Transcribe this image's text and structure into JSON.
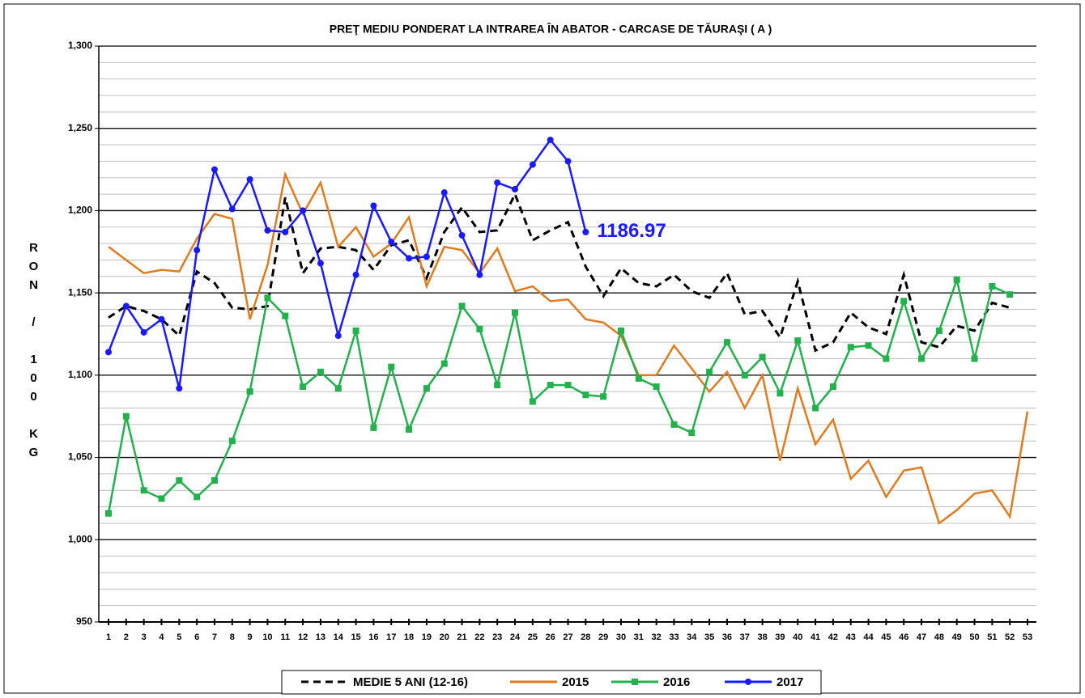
{
  "chart_data": {
    "type": "line",
    "title": "PREŢ MEDIU PONDERAT LA INTRAREA ÎN ABATOR - CARCASE DE TĂURAŞI ( A )",
    "ylabel": "RON / 100 KG",
    "annotation": "1186.97",
    "categories": [
      "1",
      "2",
      "3",
      "4",
      "5",
      "6",
      "7",
      "8",
      "9",
      "10",
      "11",
      "12",
      "13",
      "14",
      "15",
      "16",
      "17",
      "18",
      "19",
      "20",
      "21",
      "22",
      "23",
      "24",
      "25",
      "26",
      "27",
      "28",
      "29",
      "30",
      "31",
      "32",
      "33",
      "34",
      "35",
      "36",
      "37",
      "38",
      "39",
      "40",
      "41",
      "42",
      "43",
      "44",
      "45",
      "46",
      "47",
      "48",
      "49",
      "50",
      "51",
      "52",
      "53"
    ],
    "ylim": [
      950,
      1300
    ],
    "yticks": [
      {
        "value": 950,
        "label": "950"
      },
      {
        "value": 1000,
        "label": "1,000"
      },
      {
        "value": 1050,
        "label": "1,050"
      },
      {
        "value": 1100,
        "label": "1,100"
      },
      {
        "value": 1150,
        "label": "1,150"
      },
      {
        "value": 1200,
        "label": "1,200"
      },
      {
        "value": 1250,
        "label": "1,250"
      },
      {
        "value": 1300,
        "label": "1,300"
      }
    ],
    "minor_grid_step": 10,
    "grid": true,
    "legend": "bottom",
    "series": [
      {
        "name": "MEDIE 5 ANI (12-16)",
        "color": "#000000",
        "line_style": "dashed",
        "marker": "none",
        "values": [
          1135,
          1142,
          1139,
          1134,
          1124,
          1163,
          1156,
          1141,
          1140,
          1142,
          1208,
          1162,
          1177,
          1178,
          1176,
          1164,
          1179,
          1182,
          1159,
          1187,
          1202,
          1187,
          1188,
          1210,
          1182,
          1188,
          1193,
          1166,
          1148,
          1165,
          1156,
          1154,
          1161,
          1151,
          1147,
          1162,
          1137,
          1139,
          1123,
          1157,
          1115,
          1120,
          1138,
          1129,
          1125,
          1161,
          1120,
          1117,
          1130,
          1127,
          1144,
          1141,
          null
        ]
      },
      {
        "name": "2015",
        "color": "#e07b20",
        "line_style": "solid",
        "marker": "none",
        "values": [
          1178,
          1170,
          1162,
          1164,
          1163,
          1183,
          1198,
          1195,
          1134,
          1167,
          1222,
          1198,
          1217,
          1178,
          1190,
          1172,
          1180,
          1196,
          1154,
          1178,
          1176,
          1162,
          1177,
          1151,
          1154,
          1145,
          1146,
          1134,
          1132,
          1124,
          1100,
          1100,
          1118,
          1104,
          1090,
          1102,
          1080,
          1100,
          1048,
          1092,
          1058,
          1073,
          1037,
          1048,
          1026,
          1042,
          1044,
          1010,
          1018,
          1028,
          1030,
          1014,
          1078
        ]
      },
      {
        "name": "2016",
        "color": "#22b14c",
        "line_style": "solid",
        "marker": "square",
        "values": [
          1016,
          1075,
          1030,
          1025,
          1036,
          1026,
          1036,
          1060,
          1090,
          1147,
          1136,
          1093,
          1102,
          1092,
          1127,
          1068,
          1105,
          1067,
          1092,
          1107,
          1142,
          1128,
          1094,
          1138,
          1084,
          1094,
          1094,
          1088,
          1087,
          1127,
          1098,
          1093,
          1070,
          1065,
          1102,
          1120,
          1100,
          1111,
          1089,
          1121,
          1080,
          1093,
          1117,
          1118,
          1110,
          1145,
          1110,
          1127,
          1158,
          1110,
          1154,
          1149,
          null
        ]
      },
      {
        "name": "2017",
        "color": "#1a1aff",
        "line_style": "solid",
        "marker": "circle",
        "values": [
          1114,
          1142,
          1126,
          1134,
          1092,
          1176,
          1225,
          1201,
          1219,
          1188,
          1187,
          1200,
          1168,
          1124,
          1161,
          1203,
          1181,
          1171,
          1172,
          1211,
          1185,
          1161,
          1217,
          1213,
          1228,
          1243,
          1230,
          1187,
          null,
          null,
          null,
          null,
          null,
          null,
          null,
          null,
          null,
          null,
          null,
          null,
          null,
          null,
          null,
          null,
          null,
          null,
          null,
          null,
          null,
          null,
          null,
          null,
          null
        ]
      }
    ]
  }
}
